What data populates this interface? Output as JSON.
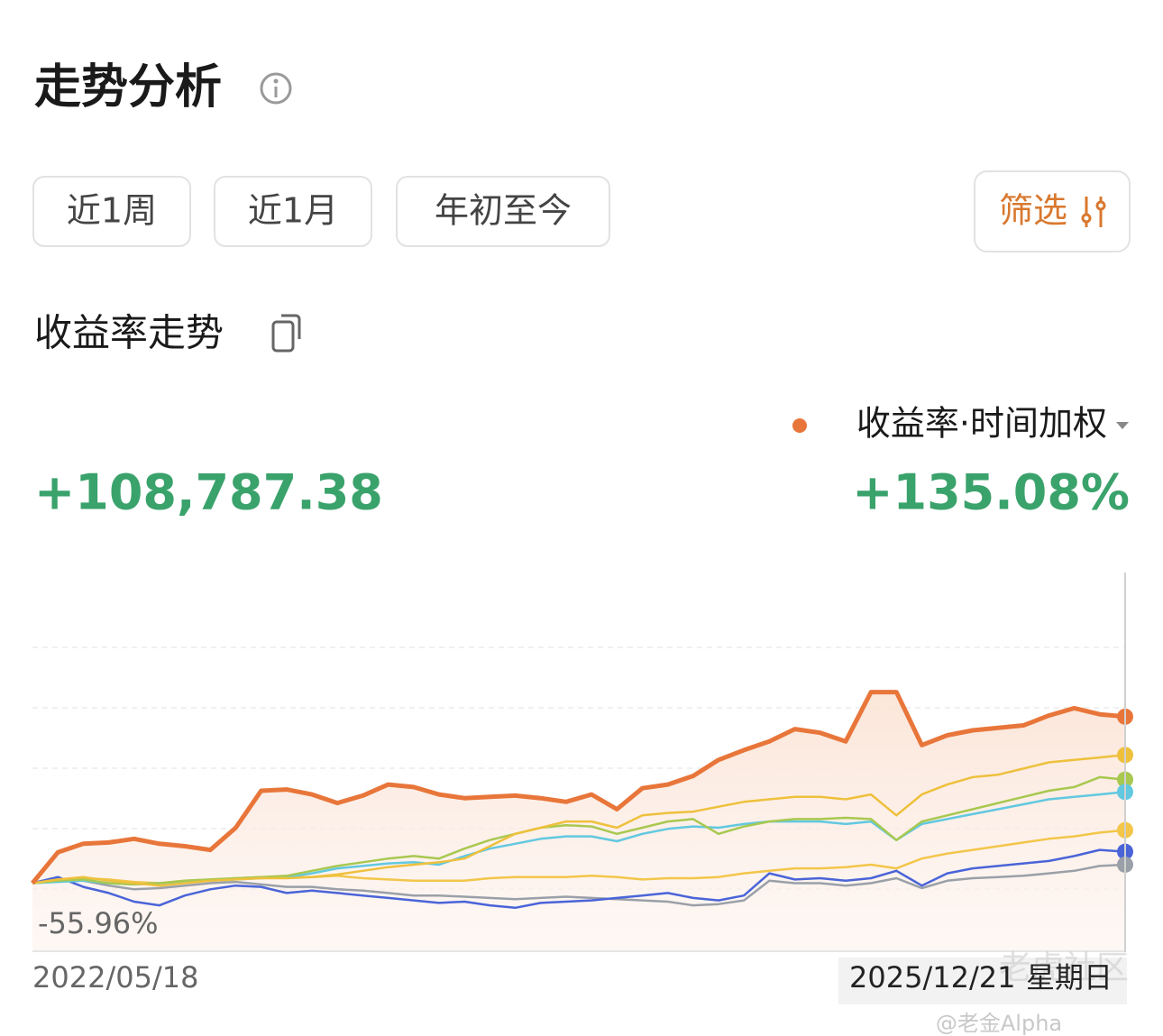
{
  "header": {
    "title": "走势分析"
  },
  "tabs": [
    "近1周",
    "近1月",
    "年初至今"
  ],
  "filter": "筛选",
  "section_title": "收益率走势",
  "metric_label": "收益率·时间加权",
  "amount": "+108,787.38",
  "return_text": "+135.08%",
  "watermark": {
    "site": "老虎社区",
    "author": "@老金Alpha"
  },
  "chart_data": {
    "type": "line",
    "categories": [
      "2022/05/18",
      null,
      null,
      null,
      null,
      null,
      null,
      null,
      null,
      null,
      null,
      null,
      null,
      null,
      null,
      null,
      null,
      null,
      null,
      null,
      null,
      null,
      null,
      null,
      null,
      null,
      null,
      null,
      null,
      null,
      null,
      null,
      null,
      null,
      null,
      null,
      null,
      null,
      null,
      null,
      null,
      null,
      null,
      "2025/12/21"
    ],
    "weekday": "星期日",
    "ylim": [
      -55.96,
      252
    ],
    "yticks": [
      {
        "value": -55.96,
        "label": "-55.96%"
      }
    ],
    "series": [
      {
        "color": "#e8763a",
        "values": [
          0,
          25,
          32,
          33,
          36,
          32,
          30,
          27,
          45,
          75,
          76,
          72,
          65,
          71,
          80,
          78,
          72,
          69,
          70,
          71,
          69,
          66,
          72,
          60,
          77,
          80,
          87,
          100,
          108,
          115,
          125,
          122,
          115,
          155,
          155,
          112,
          120,
          124,
          126,
          128,
          136,
          142,
          137,
          135.08
        ]
      },
      {
        "color": "#eec03c",
        "values": [
          0,
          3,
          5,
          2,
          0,
          -2,
          0,
          2,
          3,
          4,
          4,
          5,
          7,
          10,
          13,
          15,
          17,
          20,
          30,
          40,
          45,
          50,
          50,
          45,
          55,
          57,
          58,
          62,
          66,
          68,
          70,
          70,
          68,
          72,
          55,
          72,
          80,
          86,
          88,
          93,
          98,
          100,
          102,
          104
        ]
      },
      {
        "color": "#a8c850",
        "values": [
          0,
          2,
          3,
          0,
          -1,
          0,
          2,
          3,
          4,
          5,
          6,
          10,
          14,
          17,
          20,
          22,
          20,
          28,
          35,
          40,
          45,
          47,
          46,
          40,
          45,
          50,
          52,
          40,
          46,
          50,
          52,
          52,
          53,
          52,
          35,
          50,
          55,
          60,
          65,
          70,
          75,
          78,
          86,
          84
        ]
      },
      {
        "color": "#62c8e0",
        "values": [
          0,
          1,
          2,
          0,
          -1,
          0,
          1,
          2,
          3,
          4,
          5,
          8,
          12,
          14,
          16,
          17,
          15,
          22,
          28,
          32,
          36,
          38,
          38,
          34,
          40,
          44,
          46,
          45,
          48,
          50,
          50,
          50,
          48,
          50,
          35,
          48,
          52,
          56,
          60,
          64,
          68,
          70,
          72,
          74
        ]
      },
      {
        "color": "#f3c64a",
        "values": [
          0,
          2,
          4,
          3,
          1,
          0,
          2,
          3,
          4,
          5,
          5,
          5,
          6,
          4,
          3,
          2,
          2,
          2,
          4,
          5,
          5,
          5,
          6,
          5,
          3,
          4,
          4,
          5,
          8,
          10,
          12,
          12,
          13,
          15,
          12,
          20,
          24,
          27,
          30,
          33,
          36,
          38,
          41,
          43
        ]
      },
      {
        "color": "#4a64d8",
        "values": [
          0,
          5,
          -3,
          -8,
          -15,
          -18,
          -10,
          -5,
          -2,
          -3,
          -8,
          -6,
          -8,
          -10,
          -12,
          -14,
          -16,
          -15,
          -18,
          -20,
          -16,
          -15,
          -14,
          -12,
          -10,
          -8,
          -12,
          -14,
          -10,
          8,
          3,
          4,
          2,
          4,
          10,
          -2,
          8,
          12,
          14,
          16,
          18,
          22,
          27,
          25.5
        ]
      },
      {
        "color": "#9aa0a8",
        "values": [
          0,
          3,
          2,
          -2,
          -5,
          -4,
          -2,
          0,
          1,
          -1,
          -3,
          -3,
          -5,
          -6,
          -8,
          -10,
          -10,
          -11,
          -12,
          -13,
          -12,
          -11,
          -12,
          -13,
          -14,
          -15,
          -18,
          -17,
          -14,
          2,
          0,
          0,
          -2,
          0,
          4,
          -4,
          2,
          4,
          5,
          6,
          8,
          10,
          14,
          15
        ]
      }
    ]
  }
}
